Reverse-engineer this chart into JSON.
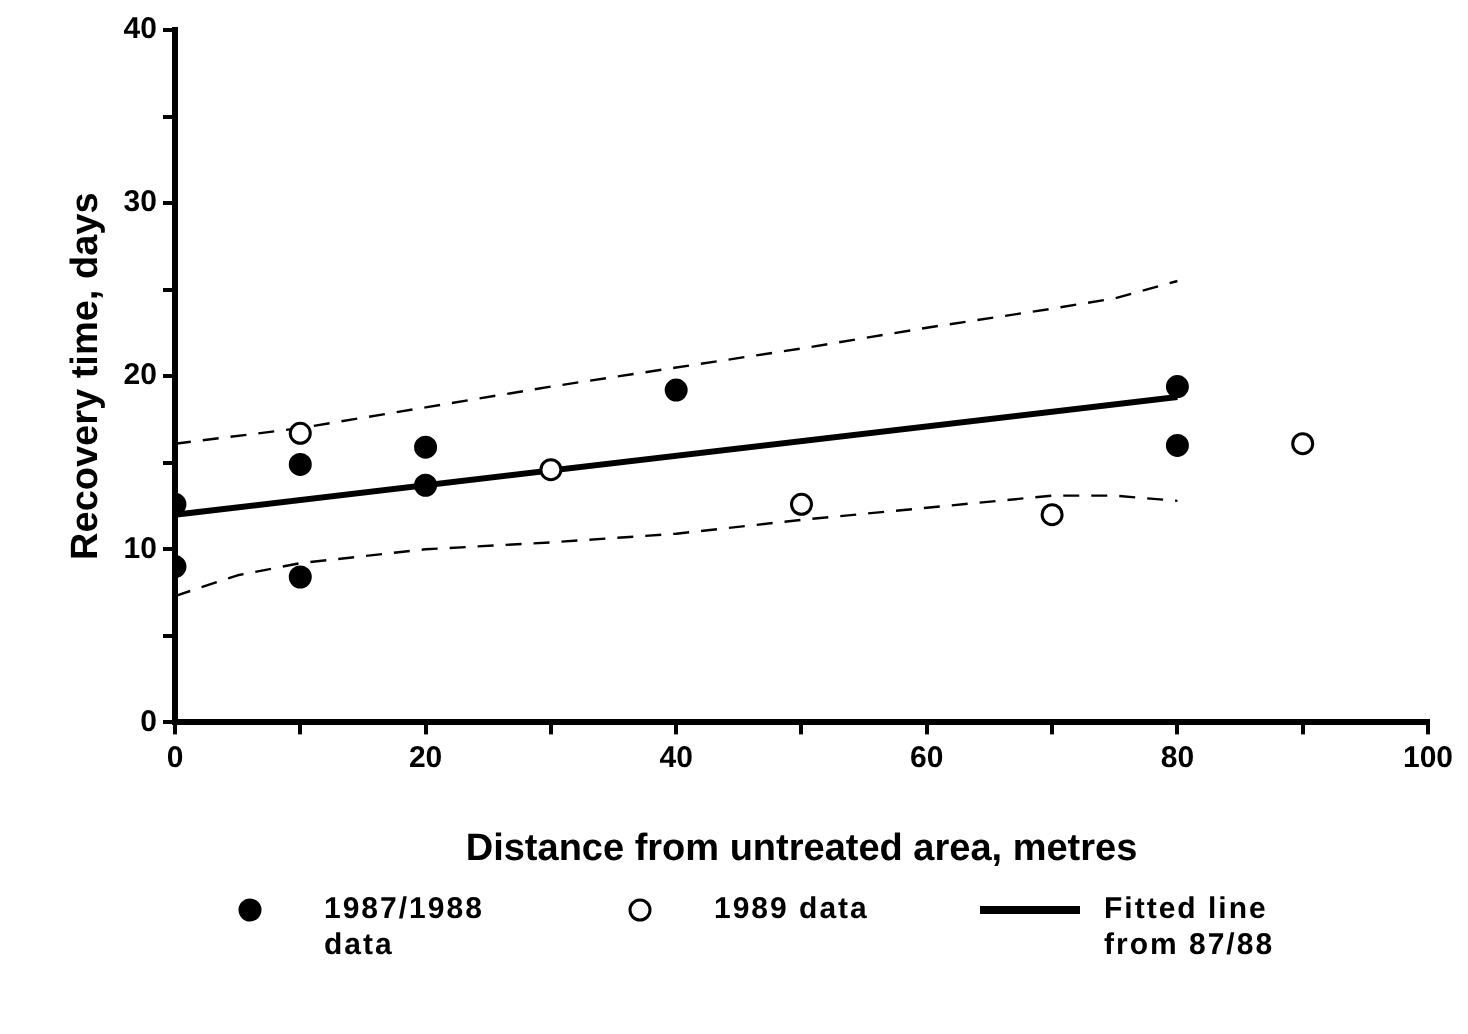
{
  "chart_data": {
    "type": "scatter",
    "xlabel": "Distance from untreated area, metres",
    "ylabel": "Recovery time, days",
    "xlim": [
      0,
      100
    ],
    "xticks": [
      0,
      {
        "value": 10,
        "label": null
      },
      20,
      {
        "value": 30,
        "label": null
      },
      40,
      {
        "value": 50,
        "label": null
      },
      60,
      {
        "value": 70,
        "label": null
      },
      80,
      {
        "value": 90,
        "label": null
      },
      100
    ],
    "ylim": [
      0,
      40
    ],
    "yticks": [
      0,
      {
        "value": 5,
        "label": null
      },
      10,
      {
        "value": 15,
        "label": null
      },
      20,
      {
        "value": 25,
        "label": null
      },
      30,
      {
        "value": 35,
        "label": null
      },
      40
    ],
    "grid": false,
    "legend": "bottom",
    "marker": "circle",
    "series": [
      {
        "name": "1987/1988 data",
        "color": "#000000",
        "x": [
          0,
          0,
          10,
          10,
          20,
          20,
          40,
          80,
          80
        ],
        "values": [
          12.6,
          9.0,
          14.9,
          8.4,
          15.9,
          13.7,
          19.2,
          19.4,
          16.0
        ]
      },
      {
        "name": "1989 data",
        "color": "#ffffff",
        "x": [
          10,
          30,
          50,
          70,
          90
        ],
        "values": [
          16.7,
          14.6,
          12.6,
          12.0,
          16.1
        ]
      },
      {
        "name": "Fitted line from 87/88",
        "type": "line",
        "marker": "none",
        "color": "#000000",
        "x": [
          0,
          80
        ],
        "values": [
          12.0,
          18.8
        ]
      },
      {
        "type": "line",
        "marker": "none",
        "line_style": "dashed",
        "color": "#000000",
        "x": [
          0,
          10,
          20,
          30,
          40,
          50,
          60,
          70,
          75,
          80
        ],
        "values": [
          16.1,
          17.0,
          18.2,
          19.4,
          20.5,
          21.6,
          22.8,
          23.9,
          24.5,
          25.5
        ]
      },
      {
        "type": "line",
        "marker": "none",
        "line_style": "dashed",
        "color": "#000000",
        "x": [
          0,
          5,
          10,
          20,
          30,
          40,
          50,
          60,
          70,
          75,
          80
        ],
        "values": [
          7.3,
          8.5,
          9.2,
          10.0,
          10.4,
          10.9,
          11.7,
          12.4,
          13.1,
          13.1,
          12.8
        ]
      }
    ]
  }
}
